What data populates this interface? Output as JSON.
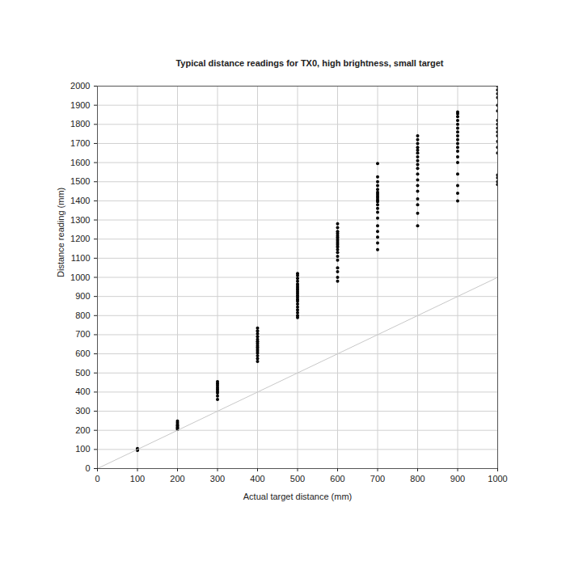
{
  "chart_data": {
    "type": "scatter",
    "title": "Typical distance readings for TX0, high brightness, small target",
    "x_label": "Actual target distance (mm)",
    "y_label": "Distance reading (mm)",
    "xlim": [
      0,
      1000
    ],
    "xticks": [
      0,
      100,
      200,
      300,
      400,
      500,
      600,
      700,
      800,
      900,
      1000
    ],
    "ylim": [
      0,
      2000
    ],
    "yticks": [
      0,
      100,
      200,
      300,
      400,
      500,
      600,
      700,
      800,
      900,
      1000,
      1100,
      1200,
      1300,
      1400,
      1500,
      1600,
      1700,
      1800,
      1900,
      2000
    ],
    "grid": true,
    "series": [
      {
        "type": "scatter",
        "color": "#000000",
        "marker": "circle",
        "x": [
          100,
          100,
          100,
          100,
          100,
          200,
          200,
          200,
          200,
          200,
          200,
          200,
          300,
          300,
          300,
          300,
          300,
          300,
          300,
          300,
          300,
          400,
          400,
          400,
          400,
          400,
          400,
          400,
          400,
          400,
          400,
          400,
          400,
          400,
          400,
          400,
          500,
          500,
          500,
          500,
          500,
          500,
          500,
          500,
          500,
          500,
          500,
          500,
          500,
          500,
          500,
          500,
          500,
          500,
          500,
          500,
          600,
          600,
          600,
          600,
          600,
          600,
          600,
          600,
          600,
          600,
          600,
          600,
          600,
          600,
          600,
          600,
          600,
          600,
          600,
          700,
          700,
          700,
          700,
          700,
          700,
          700,
          700,
          700,
          700,
          700,
          700,
          700,
          700,
          700,
          700,
          700,
          700,
          700,
          700,
          800,
          800,
          800,
          800,
          800,
          800,
          800,
          800,
          800,
          800,
          800,
          800,
          800,
          800,
          800,
          800,
          800,
          800,
          900,
          900,
          900,
          900,
          900,
          900,
          900,
          900,
          900,
          900,
          900,
          900,
          900,
          900,
          900,
          900,
          900,
          900,
          1000,
          1000,
          1000,
          1000,
          1000,
          1000,
          1000,
          1000,
          1000,
          1000,
          1000,
          1000,
          1000,
          1000,
          1000,
          1000,
          1000,
          1000
        ],
        "values": [
          95,
          98,
          100,
          102,
          105,
          205,
          212,
          218,
          225,
          232,
          240,
          248,
          362,
          380,
          395,
          405,
          415,
          425,
          435,
          445,
          455,
          560,
          575,
          590,
          605,
          615,
          625,
          635,
          645,
          655,
          665,
          675,
          690,
          705,
          720,
          735,
          790,
          800,
          815,
          830,
          845,
          860,
          875,
          885,
          895,
          905,
          915,
          925,
          935,
          945,
          955,
          965,
          980,
          995,
          1010,
          1020,
          980,
          1000,
          1030,
          1050,
          1090,
          1110,
          1130,
          1145,
          1160,
          1170,
          1180,
          1190,
          1200,
          1210,
          1220,
          1230,
          1240,
          1260,
          1280,
          1145,
          1180,
          1210,
          1240,
          1270,
          1310,
          1340,
          1360,
          1380,
          1395,
          1405,
          1415,
          1425,
          1435,
          1445,
          1460,
          1480,
          1500,
          1525,
          1595,
          1270,
          1335,
          1380,
          1410,
          1450,
          1480,
          1510,
          1540,
          1570,
          1590,
          1610,
          1630,
          1650,
          1665,
          1680,
          1700,
          1720,
          1740,
          1400,
          1440,
          1480,
          1540,
          1600,
          1630,
          1660,
          1680,
          1700,
          1720,
          1740,
          1760,
          1780,
          1800,
          1820,
          1840,
          1855,
          1865,
          1485,
          1500,
          1520,
          1535,
          1650,
          1680,
          1710,
          1740,
          1760,
          1780,
          1800,
          1820,
          1870,
          1900,
          1940,
          1960,
          1980,
          2000
        ]
      },
      {
        "type": "line",
        "color": "#c8c8c8",
        "x": [
          0,
          1000
        ],
        "values": [
          0,
          1000
        ]
      }
    ]
  }
}
